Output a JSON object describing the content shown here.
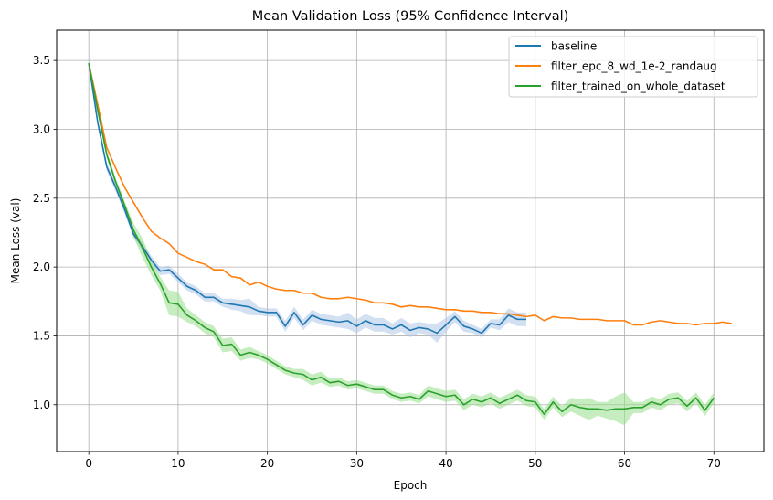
{
  "chart_data": {
    "type": "line",
    "title": "Mean Validation Loss (95% Confidence Interval)",
    "xlabel": "Epoch",
    "ylabel": "Mean Loss (val)",
    "xlim": [
      -3.6,
      75.6
    ],
    "ylim": [
      0.66,
      3.72
    ],
    "xticks": [
      0,
      10,
      20,
      30,
      40,
      50,
      60,
      70
    ],
    "yticks": [
      1.0,
      1.5,
      2.0,
      2.5,
      3.0,
      3.5
    ],
    "ytick_labels": [
      "1.0",
      "1.5",
      "2.0",
      "2.5",
      "3.0",
      "3.5"
    ],
    "grid": true,
    "legend_position": "top-right",
    "series": [
      {
        "name": "baseline",
        "color": "#1f77b4",
        "band_color": "#aec7e8",
        "values": [
          3.48,
          3.05,
          2.73,
          2.58,
          2.42,
          2.24,
          2.15,
          2.05,
          1.97,
          1.98,
          1.92,
          1.86,
          1.83,
          1.78,
          1.78,
          1.74,
          1.73,
          1.72,
          1.71,
          1.68,
          1.67,
          1.67,
          1.57,
          1.67,
          1.58,
          1.65,
          1.62,
          1.61,
          1.6,
          1.61,
          1.57,
          1.61,
          1.58,
          1.58,
          1.55,
          1.58,
          1.54,
          1.56,
          1.55,
          1.52,
          1.58,
          1.64,
          1.57,
          1.55,
          1.52,
          1.59,
          1.58,
          1.65,
          1.62,
          1.62
        ],
        "band": [
          0.02,
          0.03,
          0.03,
          0.03,
          0.03,
          0.03,
          0.03,
          0.03,
          0.03,
          0.03,
          0.03,
          0.03,
          0.03,
          0.03,
          0.03,
          0.03,
          0.04,
          0.04,
          0.06,
          0.03,
          0.03,
          0.03,
          0.04,
          0.04,
          0.04,
          0.04,
          0.04,
          0.04,
          0.04,
          0.06,
          0.05,
          0.05,
          0.05,
          0.05,
          0.04,
          0.05,
          0.05,
          0.04,
          0.04,
          0.07,
          0.05,
          0.04,
          0.04,
          0.03,
          0.03,
          0.03,
          0.04,
          0.05,
          0.05,
          0.05
        ]
      },
      {
        "name": "filter_epc_8_wd_1e-2_randaug",
        "color": "#ff7f0e",
        "values": [
          3.48,
          3.18,
          2.87,
          2.72,
          2.58,
          2.47,
          2.36,
          2.26,
          2.21,
          2.17,
          2.1,
          2.07,
          2.04,
          2.02,
          1.98,
          1.98,
          1.93,
          1.92,
          1.87,
          1.89,
          1.86,
          1.84,
          1.83,
          1.83,
          1.81,
          1.81,
          1.78,
          1.77,
          1.77,
          1.78,
          1.77,
          1.76,
          1.74,
          1.74,
          1.73,
          1.71,
          1.72,
          1.71,
          1.71,
          1.7,
          1.69,
          1.69,
          1.68,
          1.68,
          1.67,
          1.67,
          1.66,
          1.66,
          1.65,
          1.64,
          1.65,
          1.61,
          1.64,
          1.63,
          1.63,
          1.62,
          1.62,
          1.62,
          1.61,
          1.61,
          1.61,
          1.58,
          1.58,
          1.6,
          1.61,
          1.6,
          1.59,
          1.59,
          1.58,
          1.59,
          1.59,
          1.6,
          1.59
        ]
      },
      {
        "name": "filter_trained_on_whole_dataset",
        "color": "#2ca02c",
        "band_color": "#98df8a",
        "values": [
          3.48,
          3.14,
          2.82,
          2.62,
          2.45,
          2.27,
          2.14,
          2.0,
          1.88,
          1.74,
          1.73,
          1.65,
          1.61,
          1.56,
          1.53,
          1.43,
          1.44,
          1.36,
          1.38,
          1.36,
          1.33,
          1.29,
          1.25,
          1.23,
          1.22,
          1.18,
          1.2,
          1.16,
          1.17,
          1.14,
          1.15,
          1.13,
          1.11,
          1.11,
          1.07,
          1.05,
          1.06,
          1.04,
          1.1,
          1.08,
          1.06,
          1.07,
          1.0,
          1.04,
          1.02,
          1.05,
          1.01,
          1.04,
          1.07,
          1.03,
          1.02,
          0.93,
          1.02,
          0.95,
          1.0,
          0.98,
          0.97,
          0.97,
          0.96,
          0.97,
          0.97,
          0.98,
          0.98,
          1.02,
          1.0,
          1.04,
          1.05,
          0.99,
          1.05,
          0.96,
          1.05
        ],
        "band": [
          0.02,
          0.03,
          0.03,
          0.03,
          0.03,
          0.05,
          0.07,
          0.06,
          0.05,
          0.09,
          0.09,
          0.05,
          0.04,
          0.04,
          0.04,
          0.05,
          0.05,
          0.04,
          0.04,
          0.03,
          0.03,
          0.03,
          0.03,
          0.03,
          0.04,
          0.04,
          0.04,
          0.03,
          0.03,
          0.03,
          0.03,
          0.03,
          0.03,
          0.03,
          0.03,
          0.03,
          0.03,
          0.03,
          0.04,
          0.04,
          0.04,
          0.04,
          0.04,
          0.04,
          0.04,
          0.04,
          0.04,
          0.04,
          0.04,
          0.04,
          0.04,
          0.04,
          0.04,
          0.04,
          0.05,
          0.06,
          0.08,
          0.05,
          0.06,
          0.09,
          0.12,
          0.04,
          0.04,
          0.04,
          0.04,
          0.04,
          0.04,
          0.04,
          0.04,
          0.04,
          0.04
        ]
      }
    ]
  }
}
